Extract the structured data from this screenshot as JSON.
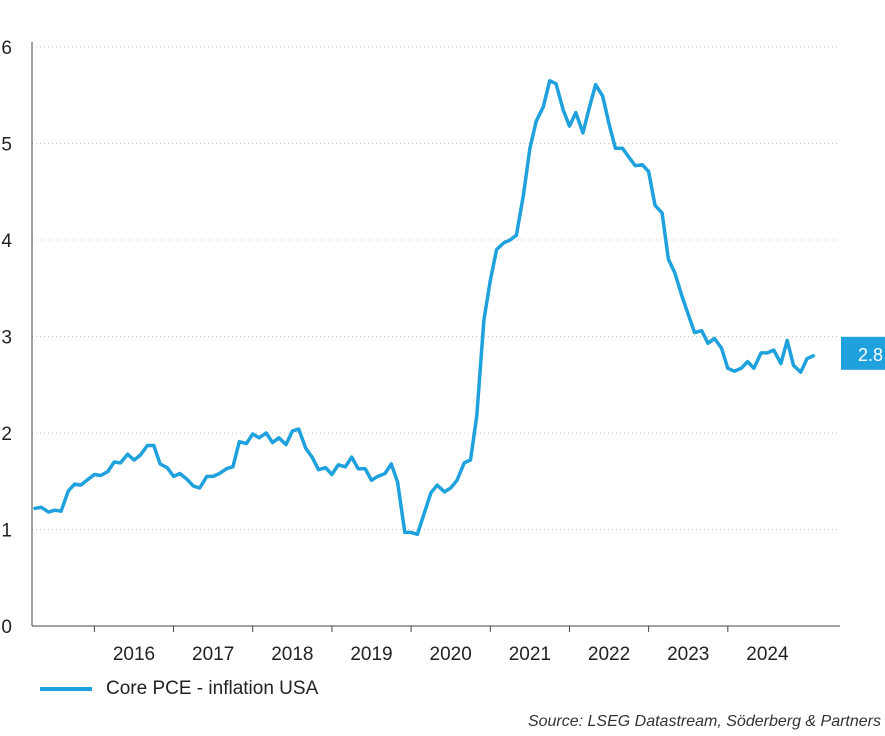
{
  "chart_data": {
    "type": "line",
    "title": "",
    "xlabel": "",
    "ylabel": "",
    "ylim": [
      0,
      6
    ],
    "xlim": [
      2015.25,
      2025.0
    ],
    "yticks": [
      0,
      1,
      2,
      3,
      4,
      5,
      6
    ],
    "xticks": [
      {
        "label": "2016",
        "value": 2016.0
      },
      {
        "label": "2017",
        "value": 2017.0
      },
      {
        "label": "2018",
        "value": 2018.0
      },
      {
        "label": "2019",
        "value": 2019.0
      },
      {
        "label": "2020",
        "value": 2020.0
      },
      {
        "label": "2021",
        "value": 2021.0
      },
      {
        "label": "2022",
        "value": 2022.0
      },
      {
        "label": "2023",
        "value": 2023.0
      },
      {
        "label": "2024",
        "value": 2024.0
      }
    ],
    "grid": "horizontal dotted",
    "last_value_label": "2.8",
    "series": [
      {
        "name": "Core PCE - inflation USA",
        "color": "#1ea1dc",
        "points": [
          [
            2015.25,
            1.22
          ],
          [
            2015.33,
            1.23
          ],
          [
            2015.42,
            1.18
          ],
          [
            2015.5,
            1.2
          ],
          [
            2015.58,
            1.19
          ],
          [
            2015.67,
            1.4
          ],
          [
            2015.75,
            1.47
          ],
          [
            2015.83,
            1.46
          ],
          [
            2015.92,
            1.52
          ],
          [
            2016.0,
            1.57
          ],
          [
            2016.08,
            1.56
          ],
          [
            2016.17,
            1.6
          ],
          [
            2016.25,
            1.7
          ],
          [
            2016.33,
            1.69
          ],
          [
            2016.42,
            1.78
          ],
          [
            2016.5,
            1.72
          ],
          [
            2016.58,
            1.77
          ],
          [
            2016.67,
            1.87
          ],
          [
            2016.75,
            1.87
          ],
          [
            2016.83,
            1.68
          ],
          [
            2016.92,
            1.64
          ],
          [
            2017.0,
            1.55
          ],
          [
            2017.08,
            1.58
          ],
          [
            2017.17,
            1.52
          ],
          [
            2017.25,
            1.45
          ],
          [
            2017.33,
            1.43
          ],
          [
            2017.42,
            1.55
          ],
          [
            2017.5,
            1.55
          ],
          [
            2017.58,
            1.58
          ],
          [
            2017.67,
            1.63
          ],
          [
            2017.75,
            1.65
          ],
          [
            2017.83,
            1.91
          ],
          [
            2017.92,
            1.89
          ],
          [
            2018.0,
            1.99
          ],
          [
            2018.08,
            1.95
          ],
          [
            2018.17,
            2.0
          ],
          [
            2018.25,
            1.9
          ],
          [
            2018.33,
            1.95
          ],
          [
            2018.42,
            1.88
          ],
          [
            2018.5,
            2.02
          ],
          [
            2018.58,
            2.04
          ],
          [
            2018.67,
            1.84
          ],
          [
            2018.75,
            1.75
          ],
          [
            2018.83,
            1.62
          ],
          [
            2018.92,
            1.64
          ],
          [
            2019.0,
            1.57
          ],
          [
            2019.08,
            1.67
          ],
          [
            2019.17,
            1.65
          ],
          [
            2019.25,
            1.75
          ],
          [
            2019.33,
            1.63
          ],
          [
            2019.42,
            1.63
          ],
          [
            2019.5,
            1.51
          ],
          [
            2019.58,
            1.55
          ],
          [
            2019.67,
            1.58
          ],
          [
            2019.75,
            1.68
          ],
          [
            2019.83,
            1.49
          ],
          [
            2019.92,
            0.97
          ],
          [
            2020.0,
            0.97
          ],
          [
            2020.08,
            0.95
          ],
          [
            2020.17,
            1.18
          ],
          [
            2020.25,
            1.38
          ],
          [
            2020.33,
            1.46
          ],
          [
            2020.42,
            1.39
          ],
          [
            2020.5,
            1.43
          ],
          [
            2020.58,
            1.51
          ],
          [
            2020.67,
            1.69
          ],
          [
            2020.75,
            1.72
          ],
          [
            2020.83,
            2.18
          ],
          [
            2020.92,
            3.17
          ],
          [
            2021.0,
            3.58
          ],
          [
            2021.08,
            3.9
          ],
          [
            2021.17,
            3.97
          ],
          [
            2021.25,
            4.0
          ],
          [
            2021.33,
            4.05
          ],
          [
            2021.42,
            4.47
          ],
          [
            2021.5,
            4.95
          ],
          [
            2021.58,
            5.23
          ],
          [
            2021.67,
            5.38
          ],
          [
            2021.75,
            5.65
          ],
          [
            2021.83,
            5.62
          ],
          [
            2021.92,
            5.35
          ],
          [
            2022.0,
            5.18
          ],
          [
            2022.08,
            5.32
          ],
          [
            2022.17,
            5.11
          ],
          [
            2022.25,
            5.37
          ],
          [
            2022.33,
            5.61
          ],
          [
            2022.42,
            5.49
          ],
          [
            2022.5,
            5.2
          ],
          [
            2022.58,
            4.95
          ],
          [
            2022.67,
            4.95
          ],
          [
            2022.75,
            4.86
          ],
          [
            2022.83,
            4.77
          ],
          [
            2022.92,
            4.78
          ],
          [
            2023.0,
            4.71
          ],
          [
            2023.08,
            4.36
          ],
          [
            2023.17,
            4.28
          ],
          [
            2023.25,
            3.8
          ],
          [
            2023.33,
            3.66
          ],
          [
            2023.42,
            3.42
          ],
          [
            2023.5,
            3.23
          ],
          [
            2023.58,
            3.04
          ],
          [
            2023.67,
            3.06
          ],
          [
            2023.75,
            2.93
          ],
          [
            2023.83,
            2.98
          ],
          [
            2023.92,
            2.88
          ],
          [
            2024.0,
            2.67
          ],
          [
            2024.08,
            2.64
          ],
          [
            2024.17,
            2.67
          ],
          [
            2024.25,
            2.74
          ],
          [
            2024.33,
            2.67
          ],
          [
            2024.42,
            2.83
          ],
          [
            2024.5,
            2.83
          ],
          [
            2024.58,
            2.86
          ],
          [
            2024.67,
            2.72
          ],
          [
            2024.75,
            2.96
          ],
          [
            2024.83,
            2.7
          ],
          [
            2024.92,
            2.63
          ],
          [
            2025.0,
            2.77
          ],
          [
            2025.08,
            2.8
          ]
        ]
      }
    ]
  },
  "legend": {
    "label": "Core PCE - inflation USA",
    "color": "#1ea1dc"
  },
  "source": "Source: LSEG Datastream, Söderberg & Partners"
}
